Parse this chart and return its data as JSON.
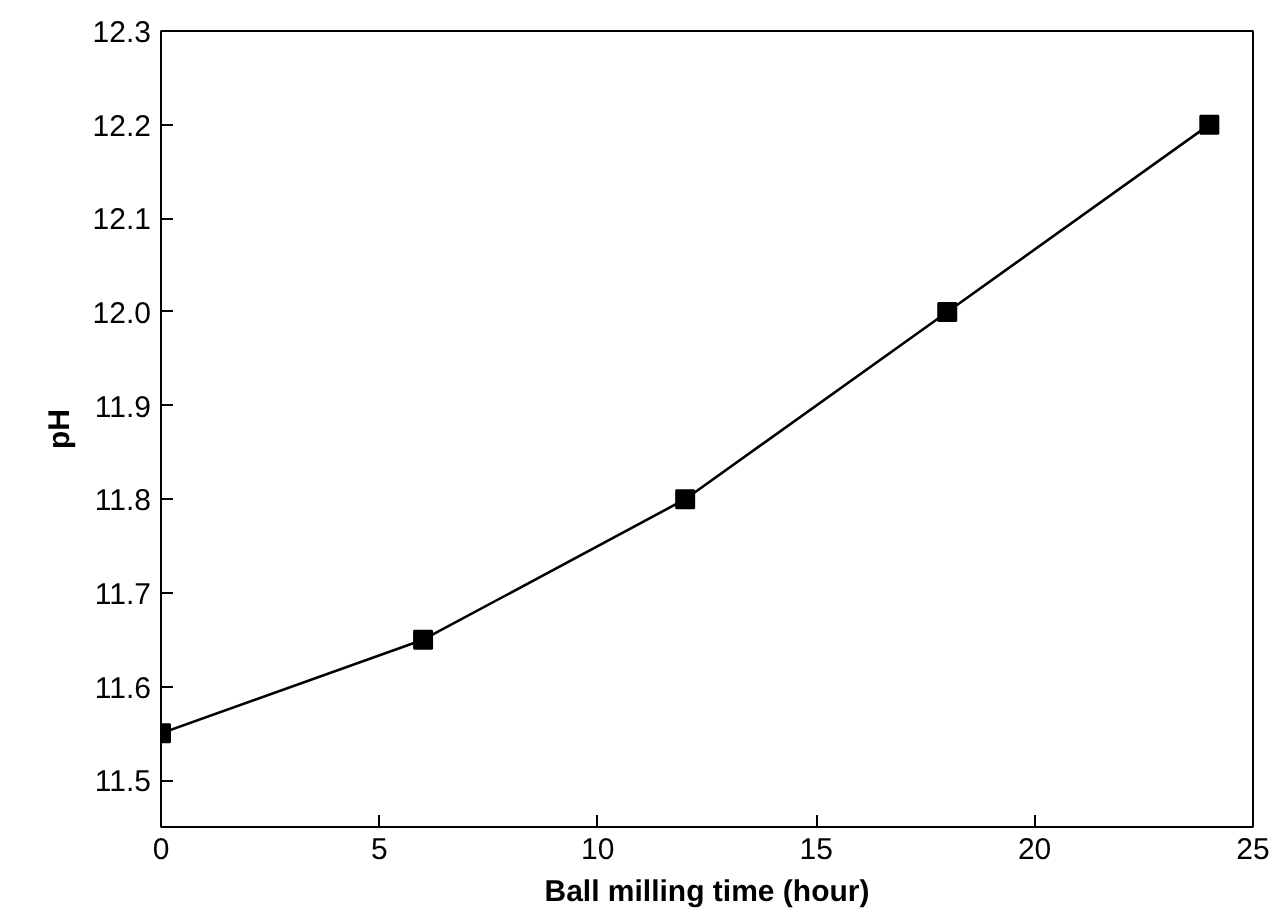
{
  "chart_data": {
    "type": "line",
    "xlabel": "Ball milling time (hour)",
    "ylabel": "pH",
    "x": [
      0,
      6,
      12,
      18,
      24
    ],
    "series": [
      {
        "color": "#000000",
        "values": [
          11.55,
          11.65,
          11.8,
          12.0,
          12.2
        ]
      }
    ],
    "xlim": [
      0,
      25
    ],
    "xticks": [
      0,
      5,
      10,
      15,
      20,
      25
    ],
    "ylim": [
      11.45,
      12.3
    ],
    "yticks": [
      11.5,
      11.6,
      11.7,
      11.8,
      11.9,
      {
        "value": 12.0,
        "label": "12.0"
      },
      12.1,
      12.2,
      12.3
    ],
    "marker": "square",
    "line_style": "solid"
  }
}
